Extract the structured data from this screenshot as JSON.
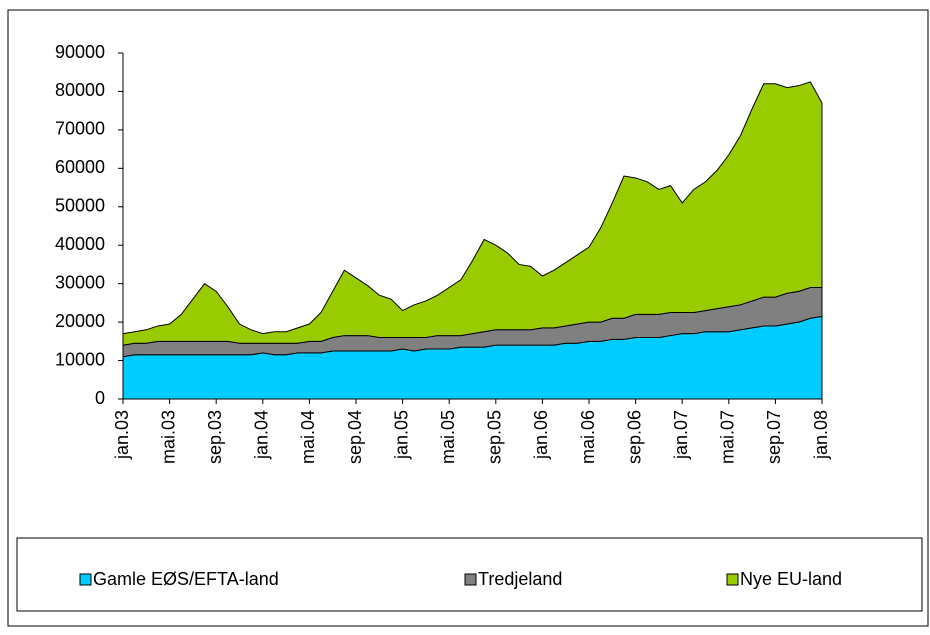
{
  "chart_data": {
    "type": "stacked_area",
    "categories": [
      "jan.03",
      null,
      null,
      null,
      "mai.03",
      null,
      null,
      null,
      "sep.03",
      null,
      null,
      null,
      "jan.04",
      null,
      null,
      null,
      "mai.04",
      null,
      null,
      null,
      "sep.04",
      null,
      null,
      null,
      "jan.05",
      null,
      null,
      null,
      "mai.05",
      null,
      null,
      null,
      "sep.05",
      null,
      null,
      null,
      "jan.06",
      null,
      null,
      null,
      "mai.06",
      null,
      null,
      null,
      "sep.06",
      null,
      null,
      null,
      "jan.07",
      null,
      null,
      null,
      "mai.07",
      null,
      null,
      null,
      "sep.07",
      null,
      null,
      null,
      "jan.08"
    ],
    "series": [
      {
        "name": "Gamle EØS/EFTA-land",
        "color": "#00ccff",
        "values": [
          11000,
          11500,
          11500,
          11500,
          11500,
          11500,
          11500,
          11500,
          11500,
          11500,
          11500,
          11500,
          12000,
          11500,
          11500,
          12000,
          12000,
          12000,
          12500,
          12500,
          12500,
          12500,
          12500,
          12500,
          13000,
          12500,
          13000,
          13000,
          13000,
          13500,
          13500,
          13500,
          14000,
          14000,
          14000,
          14000,
          14000,
          14000,
          14500,
          14500,
          15000,
          15000,
          15500,
          15500,
          16000,
          16000,
          16000,
          16500,
          17000,
          17000,
          17500,
          17500,
          17500,
          18000,
          18500,
          19000,
          19000,
          19500,
          20000,
          21000,
          21500
        ]
      },
      {
        "name": "Tredjeland",
        "color": "#808080",
        "values": [
          3000,
          3000,
          3000,
          3500,
          3500,
          3500,
          3500,
          3500,
          3500,
          3500,
          3000,
          3000,
          2500,
          3000,
          3000,
          2500,
          3000,
          3000,
          3500,
          4000,
          4000,
          4000,
          3500,
          3500,
          3000,
          3500,
          3000,
          3500,
          3500,
          3000,
          3500,
          4000,
          4000,
          4000,
          4000,
          4000,
          4500,
          4500,
          4500,
          5000,
          5000,
          5000,
          5500,
          5500,
          6000,
          6000,
          6000,
          6000,
          5500,
          5500,
          5500,
          6000,
          6500,
          6500,
          7000,
          7500,
          7500,
          8000,
          8000,
          8000,
          7500
        ]
      },
      {
        "name": "Nye EU-land",
        "color": "#99cc00",
        "values": [
          3000,
          3000,
          3500,
          4000,
          4500,
          7000,
          11000,
          15000,
          13000,
          9000,
          5000,
          3500,
          2500,
          3000,
          3000,
          4000,
          4500,
          7500,
          12000,
          17000,
          15000,
          13000,
          11000,
          10000,
          7000,
          8500,
          9500,
          10500,
          12500,
          14500,
          19000,
          24000,
          22000,
          20000,
          17000,
          16500,
          13500,
          15000,
          16500,
          18000,
          19500,
          24500,
          30000,
          37000,
          35500,
          34500,
          32500,
          33000,
          28500,
          32000,
          33500,
          36000,
          39500,
          44000,
          50000,
          55500,
          55500,
          53500,
          53500,
          53500,
          48000
        ]
      }
    ],
    "ylim": [
      0,
      90000
    ],
    "yticks": [
      0,
      10000,
      20000,
      30000,
      40000,
      50000,
      60000,
      70000,
      80000,
      90000
    ],
    "legend": "bottom"
  }
}
